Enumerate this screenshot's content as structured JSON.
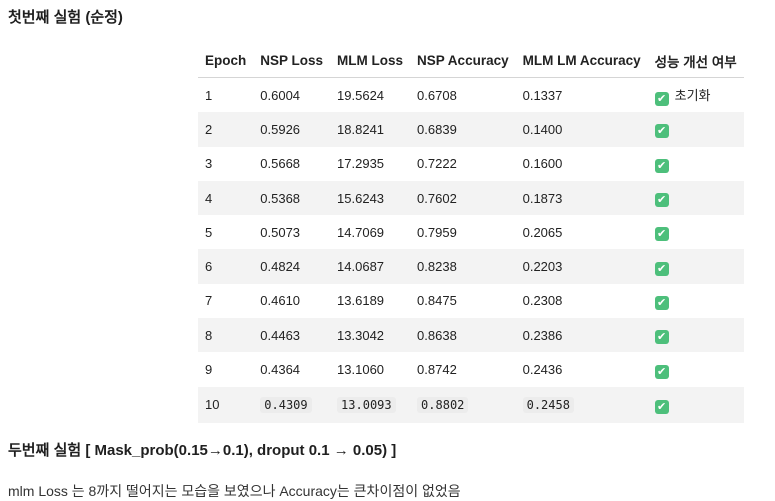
{
  "section1_title": "첫번째 실험 (순정)",
  "table": {
    "headers": [
      "Epoch",
      "NSP Loss",
      "MLM Loss",
      "NSP Accuracy",
      "MLM LM Accuracy",
      "성능 개선 여부"
    ],
    "rows": [
      {
        "epoch": "1",
        "nsp_loss": "0.6004",
        "mlm_loss": "19.5624",
        "nsp_acc": "0.6708",
        "mlm_acc": "0.1337",
        "improved": "check",
        "note": "초기화"
      },
      {
        "epoch": "2",
        "nsp_loss": "0.5926",
        "mlm_loss": "18.8241",
        "nsp_acc": "0.6839",
        "mlm_acc": "0.1400",
        "improved": "check",
        "note": ""
      },
      {
        "epoch": "3",
        "nsp_loss": "0.5668",
        "mlm_loss": "17.2935",
        "nsp_acc": "0.7222",
        "mlm_acc": "0.1600",
        "improved": "check",
        "note": ""
      },
      {
        "epoch": "4",
        "nsp_loss": "0.5368",
        "mlm_loss": "15.6243",
        "nsp_acc": "0.7602",
        "mlm_acc": "0.1873",
        "improved": "check",
        "note": ""
      },
      {
        "epoch": "5",
        "nsp_loss": "0.5073",
        "mlm_loss": "14.7069",
        "nsp_acc": "0.7959",
        "mlm_acc": "0.2065",
        "improved": "check",
        "note": ""
      },
      {
        "epoch": "6",
        "nsp_loss": "0.4824",
        "mlm_loss": "14.0687",
        "nsp_acc": "0.8238",
        "mlm_acc": "0.2203",
        "improved": "check",
        "note": ""
      },
      {
        "epoch": "7",
        "nsp_loss": "0.4610",
        "mlm_loss": "13.6189",
        "nsp_acc": "0.8475",
        "mlm_acc": "0.2308",
        "improved": "check",
        "note": ""
      },
      {
        "epoch": "8",
        "nsp_loss": "0.4463",
        "mlm_loss": "13.3042",
        "nsp_acc": "0.8638",
        "mlm_acc": "0.2386",
        "improved": "check",
        "note": ""
      },
      {
        "epoch": "9",
        "nsp_loss": "0.4364",
        "mlm_loss": "13.1060",
        "nsp_acc": "0.8742",
        "mlm_acc": "0.2436",
        "improved": "check",
        "note": ""
      },
      {
        "epoch": "10",
        "nsp_loss": "0.4309",
        "mlm_loss": "13.0093",
        "nsp_acc": "0.8802",
        "mlm_acc": "0.2458",
        "improved": "check",
        "note": ""
      }
    ]
  },
  "section2_title": "두번째 실험 [ Mask_prob(0.15→0.1), droput 0.1 → 0.05) ]",
  "section2_text": "mlm Loss 는 8까지 떨어지는 모습을 보였으나 Accuracy는 큰차이점이 없었음",
  "colors": {
    "check_green": "#4dbf7b",
    "stripe": "#f3f3f3"
  }
}
